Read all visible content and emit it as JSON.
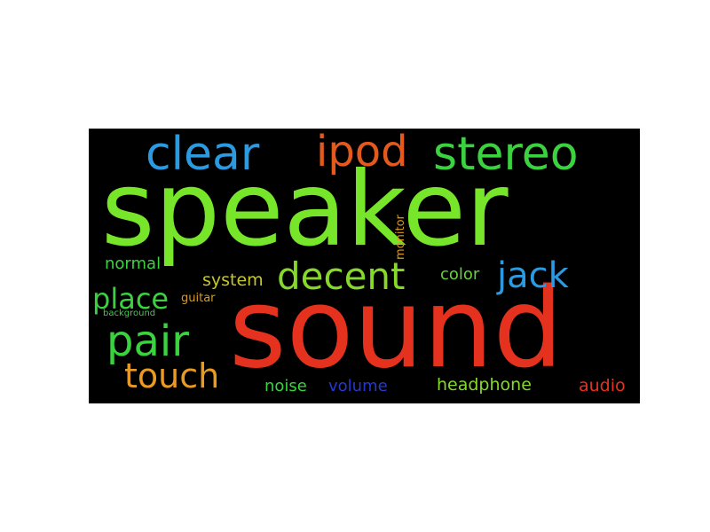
{
  "words": [
    {
      "text": "speaker",
      "color": "#77e52a"
    },
    {
      "text": "sound",
      "color": "#e5321e"
    },
    {
      "text": "clear",
      "color": "#2b9ae0"
    },
    {
      "text": "ipod",
      "color": "#e45a1d"
    },
    {
      "text": "stereo",
      "color": "#3ad33f"
    },
    {
      "text": "decent",
      "color": "#86d92a"
    },
    {
      "text": "jack",
      "color": "#2b9ae0"
    },
    {
      "text": "pair",
      "color": "#3ad33f"
    },
    {
      "text": "place",
      "color": "#3ad33f"
    },
    {
      "text": "touch",
      "color": "#e89a23"
    },
    {
      "text": "normal",
      "color": "#3ad33f"
    },
    {
      "text": "system",
      "color": "#c7c62a"
    },
    {
      "text": "color",
      "color": "#6bcf3a"
    },
    {
      "text": "monitor",
      "color": "#d89a23"
    },
    {
      "text": "guitar",
      "color": "#d89a23"
    },
    {
      "text": "background",
      "color": "#3ad33f"
    },
    {
      "text": "noise",
      "color": "#3ad33f"
    },
    {
      "text": "volume",
      "color": "#2838c8"
    },
    {
      "text": "headphone",
      "color": "#86d92a"
    },
    {
      "text": "audio",
      "color": "#e5321e"
    }
  ]
}
